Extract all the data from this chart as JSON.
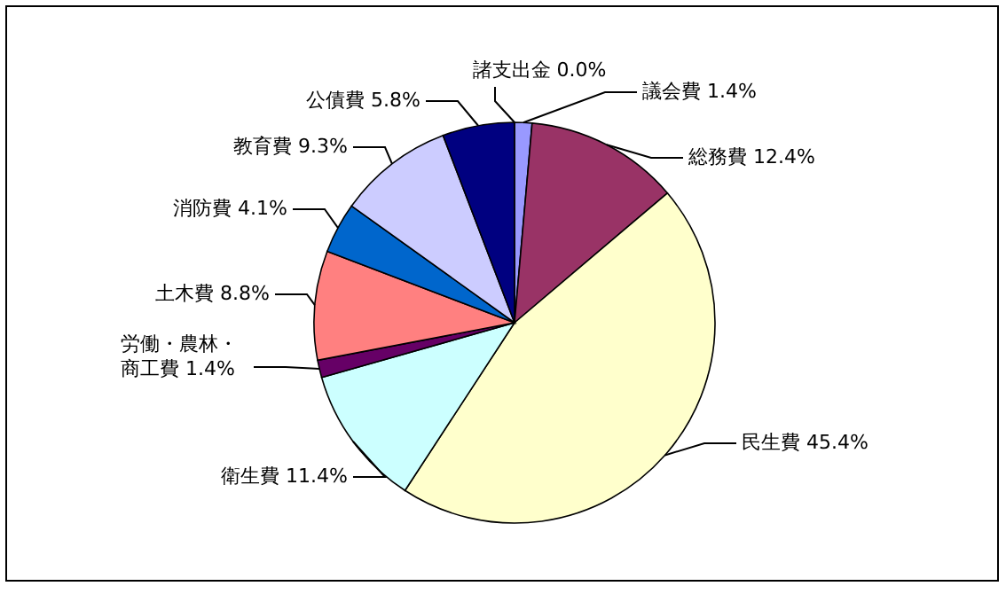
{
  "chart_data": {
    "type": "pie",
    "categories": [
      "諸支出金",
      "議会費",
      "総務費",
      "民生費",
      "衛生費",
      "労働・農林・商工費",
      "土木費",
      "消防費",
      "教育費",
      "公債費"
    ],
    "values": [
      0.0,
      1.4,
      12.4,
      45.4,
      11.4,
      1.4,
      8.8,
      4.1,
      9.3,
      5.8
    ],
    "value_labels": [
      "0.0%",
      "1.4%",
      "12.4%",
      "45.4%",
      "11.4%",
      "1.4%",
      "8.8%",
      "4.1%",
      "9.3%",
      "5.8%"
    ],
    "colors": [
      "#000000",
      "#9999ff",
      "#993366",
      "#ffffcc",
      "#ccffff",
      "#660066",
      "#ff8080",
      "#0066cc",
      "#ccccff",
      "#000080"
    ],
    "legend": false
  }
}
